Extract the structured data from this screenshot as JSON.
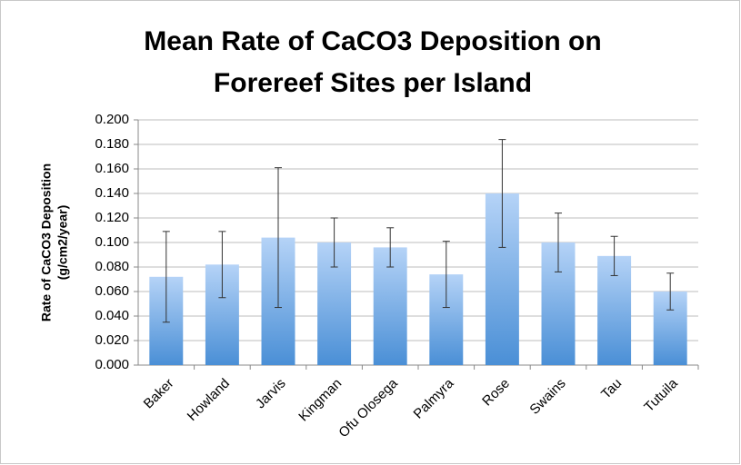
{
  "chart_data": {
    "type": "bar",
    "title": [
      "Mean Rate of CaCO3 Deposition on",
      "Forereef Sites per Island"
    ],
    "ylabel": [
      "Rate of CaCO3 Deposition",
      "(g/cm2/year)"
    ],
    "categories": [
      "Baker",
      "Howland",
      "Jarvis",
      "Kingman",
      "Ofu Olosega",
      "Palmyra",
      "Rose",
      "Swains",
      "Tau",
      "Tutuila"
    ],
    "values": [
      0.072,
      0.082,
      0.104,
      0.1,
      0.096,
      0.074,
      0.14,
      0.1,
      0.089,
      0.06
    ],
    "errors": [
      0.037,
      0.027,
      0.057,
      0.02,
      0.016,
      0.027,
      0.044,
      0.024,
      0.016,
      0.015
    ],
    "color": "#4a8fd6",
    "ylim": [
      0,
      0.2
    ],
    "yticks": [
      {
        "value": 0,
        "label": "0.000"
      },
      {
        "value": 0.02,
        "label": "0.020"
      },
      {
        "value": 0.04,
        "label": "0.040"
      },
      {
        "value": 0.06,
        "label": "0.060"
      },
      {
        "value": 0.08,
        "label": "0.080"
      },
      {
        "value": 0.1,
        "label": "0.100"
      },
      {
        "value": 0.12,
        "label": "0.120"
      },
      {
        "value": 0.14,
        "label": "0.140"
      },
      {
        "value": 0.16,
        "label": "0.160"
      },
      {
        "value": 0.18,
        "label": "0.180"
      },
      {
        "value": 0.2,
        "label": "0.200"
      }
    ],
    "grid": true
  }
}
